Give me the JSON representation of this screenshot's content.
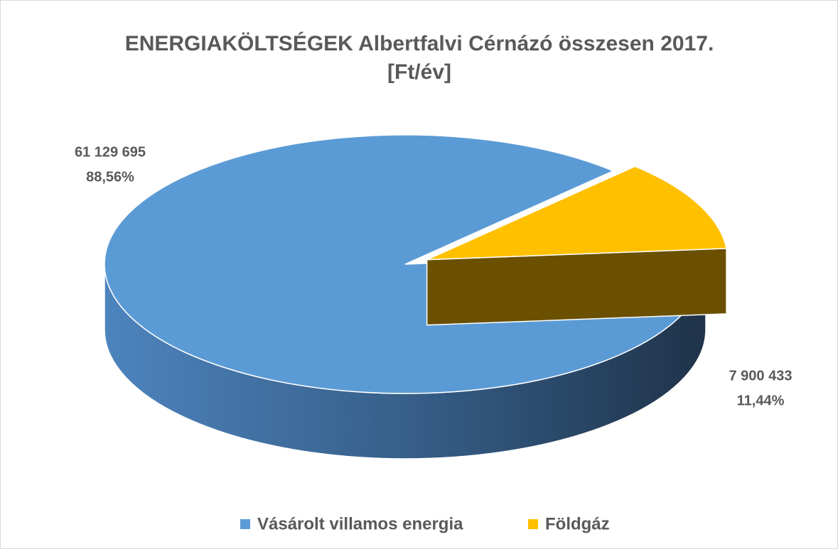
{
  "chart_data": {
    "type": "pie",
    "title": "ENERGIAKÖLTSÉGEK Albertfalvi Cérnázó összesen 2017.",
    "subtitle": "[Ft/év]",
    "categories": [
      "Vásárolt villamos energia",
      "Földgáz"
    ],
    "values": [
      61129695,
      7900433
    ],
    "value_labels": [
      "61 129 695",
      "7 900 433"
    ],
    "percentages": [
      88.56,
      11.44
    ],
    "percentage_labels": [
      "88,56%",
      "11,44%"
    ],
    "colors": [
      "#5b9bd5",
      "#ffc000"
    ],
    "legend": "bottom"
  }
}
